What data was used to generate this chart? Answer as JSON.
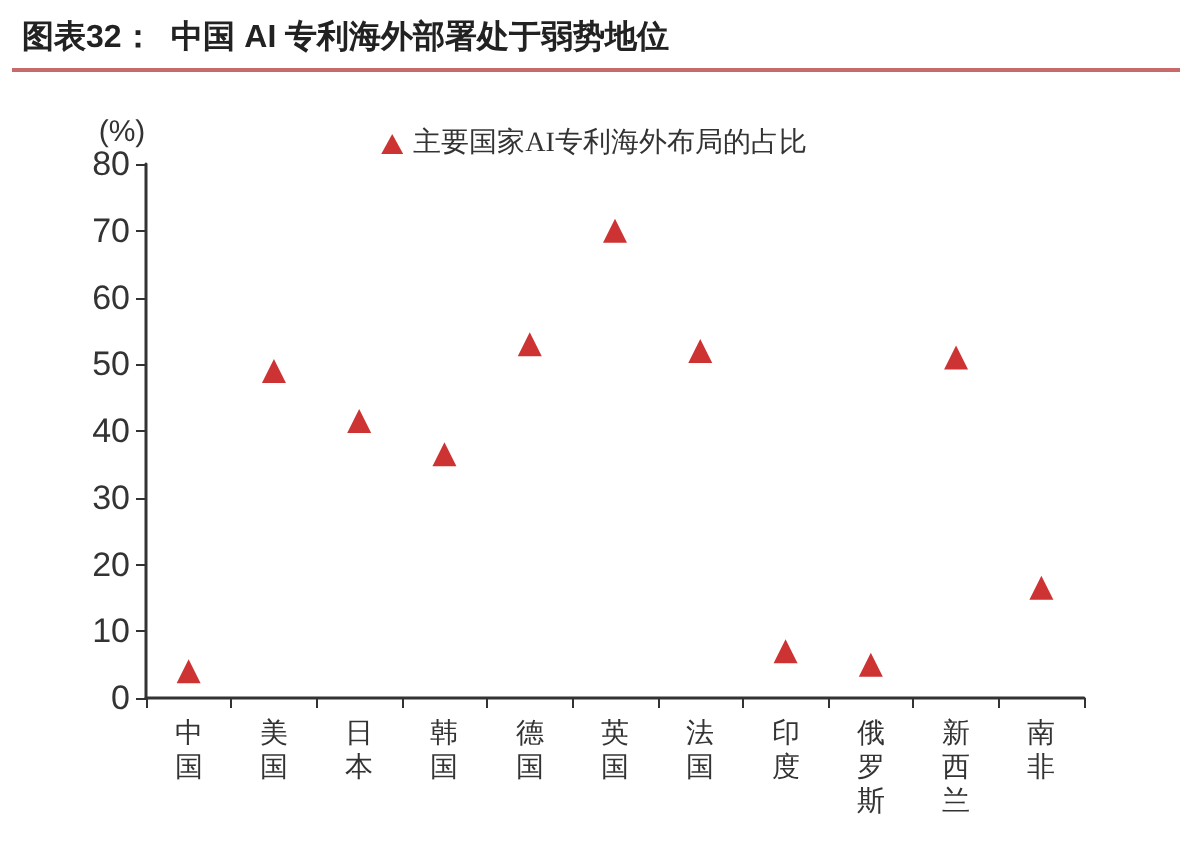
{
  "chart_data": {
    "type": "scatter",
    "title": "图表32：  中国 AI 专利海外部署处于弱势地位",
    "ylabel": "(%)",
    "categories": [
      "中国",
      "美国",
      "日本",
      "韩国",
      "德国",
      "英国",
      "法国",
      "印度",
      "俄罗斯",
      "新西兰",
      "南非"
    ],
    "series": [
      {
        "name": "主要国家AI专利海外布局的占比",
        "color": "#c00000",
        "values": [
          4,
          49,
          41.5,
          36.5,
          53,
          70,
          52,
          7,
          5,
          51,
          16.5
        ]
      }
    ],
    "ylim": [
      0,
      80
    ],
    "yticks": [
      0,
      10,
      20,
      30,
      40,
      50,
      60,
      70,
      80
    ],
    "legend": "top",
    "marker": "triangle"
  }
}
